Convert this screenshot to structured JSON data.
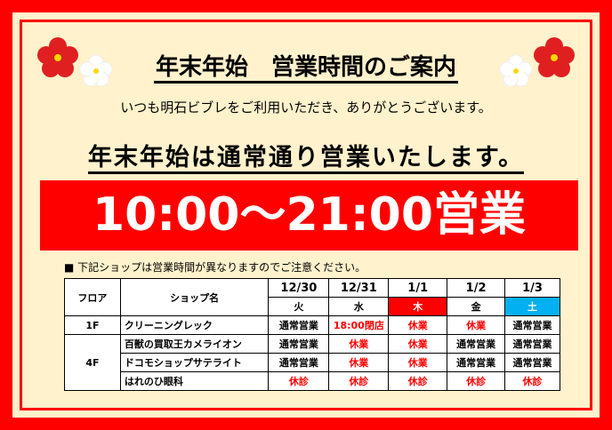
{
  "title": "年末年始　営業時間のご案内",
  "greeting": "いつも明石ビブレをご利用いただき、ありがとうございます。",
  "headline": "年末年始は通常通り営業いたします。",
  "hours": "10:00～21:00営業",
  "note": "■ 下記ショップは営業時間が異なりますのでご注意ください。",
  "colors": {
    "accent": "#ff0000",
    "background": "#fff2cc",
    "saturday": "#00b0f0"
  },
  "decorations": [
    "plum-blossom-red",
    "plum-blossom-white"
  ],
  "table": {
    "floor_header": "フロア",
    "shop_header": "ショップ名",
    "dates": [
      "12/30",
      "12/31",
      "1/1",
      "1/2",
      "1/3"
    ],
    "weekdays": [
      "火",
      "水",
      "木",
      "金",
      "土"
    ],
    "rows": [
      {
        "floor": "1F",
        "shop": "クリーニングレック",
        "values": [
          "通常営業",
          "18:00閉店",
          "休業",
          "休業",
          "通常営業"
        ]
      },
      {
        "floor": "4F",
        "shop": "百獣の買取王カメライオン",
        "values": [
          "通常営業",
          "休業",
          "休業",
          "通常営業",
          "通常営業"
        ]
      },
      {
        "floor": "",
        "shop": "ドコモショップサテライト",
        "values": [
          "通常営業",
          "休業",
          "休業",
          "通常営業",
          "通常営業"
        ]
      },
      {
        "floor": "",
        "shop": "はれのひ眼科",
        "values": [
          "休診",
          "休診",
          "休診",
          "休診",
          "休診"
        ]
      }
    ]
  }
}
